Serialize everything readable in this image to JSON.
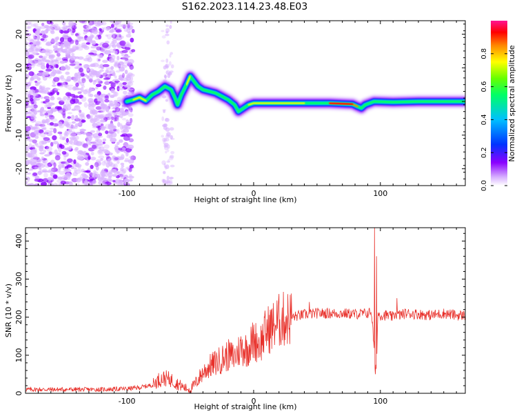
{
  "title": "S162.2023.114.23.48.E03",
  "chart_data": [
    {
      "id": "spectrogram",
      "type": "heatmap",
      "xlabel": "Height of straight line (km)",
      "ylabel": "Frequency (Hz)",
      "xlim": [
        -180,
        167
      ],
      "ylim": [
        -25,
        24
      ],
      "xticks": [
        -100,
        0,
        100
      ],
      "yticks": [
        -20,
        -10,
        0,
        10,
        20
      ],
      "colorbar": {
        "label": "Normalized spectral amplitude",
        "range": [
          0,
          1
        ],
        "ticks": [
          0.0,
          0.2,
          0.4,
          0.6,
          0.8
        ],
        "tick_labels": [
          "0.0",
          "0.2",
          "0.4",
          "0.6",
          "0.8"
        ],
        "colormap": [
          "#ffffff",
          "#d9b3ff",
          "#8a00ff",
          "#0033ff",
          "#00c0ff",
          "#00ff66",
          "#66ff00",
          "#ffff00",
          "#ff8800",
          "#ff0000",
          "#ff1493"
        ]
      },
      "ridge": [
        {
          "x": -100,
          "y": 0.0
        },
        {
          "x": -95,
          "y": 0.5
        },
        {
          "x": -90,
          "y": 1.2
        },
        {
          "x": -85,
          "y": 0.2
        },
        {
          "x": -80,
          "y": 2.0
        },
        {
          "x": -75,
          "y": 3.0
        },
        {
          "x": -70,
          "y": 4.5
        },
        {
          "x": -65,
          "y": 3.5
        },
        {
          "x": -62,
          "y": 1.0
        },
        {
          "x": -60,
          "y": -1.0
        },
        {
          "x": -57,
          "y": 2.0
        },
        {
          "x": -53,
          "y": 5.0
        },
        {
          "x": -50,
          "y": 7.5
        },
        {
          "x": -47,
          "y": 6.0
        },
        {
          "x": -44,
          "y": 4.5
        },
        {
          "x": -40,
          "y": 3.5
        },
        {
          "x": -35,
          "y": 3.0
        },
        {
          "x": -30,
          "y": 2.5
        },
        {
          "x": -25,
          "y": 1.5
        },
        {
          "x": -20,
          "y": 0.5
        },
        {
          "x": -15,
          "y": -1.0
        },
        {
          "x": -12,
          "y": -3.0
        },
        {
          "x": -8,
          "y": -2.0
        },
        {
          "x": -4,
          "y": -1.0
        },
        {
          "x": 0,
          "y": -0.5
        },
        {
          "x": 20,
          "y": -0.5
        },
        {
          "x": 40,
          "y": -0.5
        },
        {
          "x": 60,
          "y": -0.5
        },
        {
          "x": 78,
          "y": -0.8
        },
        {
          "x": 82,
          "y": -1.5
        },
        {
          "x": 85,
          "y": -2.0
        },
        {
          "x": 88,
          "y": -1.0
        },
        {
          "x": 95,
          "y": 0.0
        },
        {
          "x": 110,
          "y": -0.2
        },
        {
          "x": 130,
          "y": 0.0
        },
        {
          "x": 150,
          "y": 0.0
        },
        {
          "x": 167,
          "y": 0.0
        }
      ]
    },
    {
      "id": "snr",
      "type": "line",
      "xlabel": "Height of straight line (km)",
      "ylabel": "SNR (10 * v/v)",
      "xlim": [
        -180,
        167
      ],
      "ylim": [
        0,
        435
      ],
      "xticks": [
        -100,
        0,
        100
      ],
      "yticks": [
        0,
        100,
        200,
        300,
        400
      ],
      "color": "#e8302a",
      "series": [
        {
          "x": [
            -180,
            -160,
            -140,
            -120,
            -100,
            -90,
            -80,
            -75,
            -70,
            -65,
            -60,
            -55,
            -50,
            -45,
            -40,
            -35,
            -30,
            -25,
            -20,
            -15,
            -10,
            -5,
            0,
            5,
            10,
            15,
            20,
            30,
            40,
            50,
            60,
            70,
            80,
            90,
            93,
            95,
            96,
            97,
            98,
            100,
            105,
            110,
            112,
            115,
            120,
            130,
            140,
            150,
            160,
            167
          ],
          "y": [
            10,
            10,
            10,
            10,
            12,
            15,
            22,
            35,
            40,
            35,
            25,
            15,
            10,
            30,
            55,
            70,
            80,
            90,
            100,
            95,
            120,
            115,
            140,
            130,
            165,
            175,
            190,
            200,
            207,
            210,
            210,
            210,
            208,
            210,
            215,
            120,
            55,
            80,
            210,
            205,
            205,
            200,
            210,
            205,
            210,
            208,
            205,
            210,
            205,
            205
          ]
        }
      ],
      "spikes": [
        {
          "x": 95.5,
          "y": 435
        },
        {
          "x": 97,
          "y": 360
        },
        {
          "x": 96,
          "y": 50
        },
        {
          "x": 113,
          "y": 250
        },
        {
          "x": 44,
          "y": 240
        }
      ]
    }
  ]
}
